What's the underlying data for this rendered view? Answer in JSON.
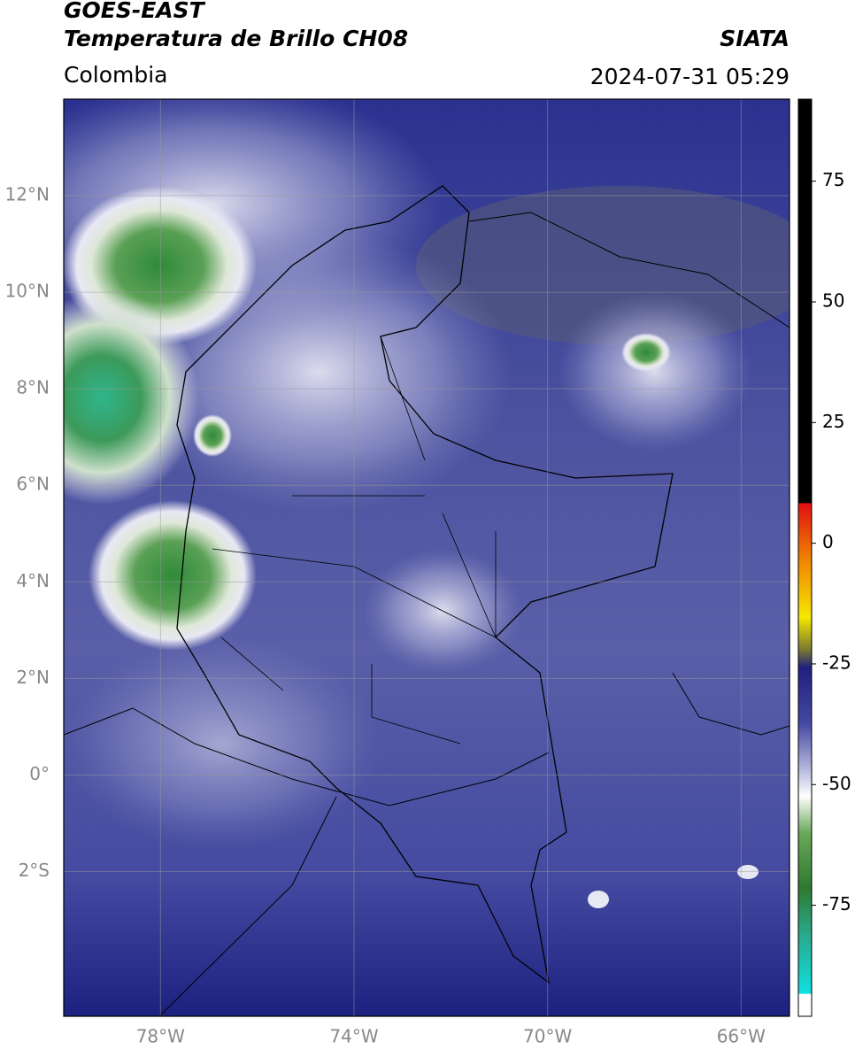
{
  "header": {
    "title": "GOES-EAST",
    "subtitle": "Temperatura de Brillo CH08",
    "source": "SIATA",
    "region": "Colombia",
    "timestamp": "2024-07-31 05:29"
  },
  "map": {
    "xlim": [
      -80,
      -65
    ],
    "ylim": [
      -5,
      14
    ],
    "xticks": [
      {
        "value": -78,
        "label": "78°W"
      },
      {
        "value": -74,
        "label": "74°W"
      },
      {
        "value": -70,
        "label": "70°W"
      },
      {
        "value": -66,
        "label": "66°W"
      }
    ],
    "yticks": [
      {
        "value": 12,
        "label": "12°N"
      },
      {
        "value": 10,
        "label": "10°N"
      },
      {
        "value": 8,
        "label": "8°N"
      },
      {
        "value": 6,
        "label": "6°N"
      },
      {
        "value": 4,
        "label": "4°N"
      },
      {
        "value": 2,
        "label": "2°N"
      },
      {
        "value": 0,
        "label": "0°"
      },
      {
        "value": -2,
        "label": "2°S"
      }
    ],
    "grid": true
  },
  "colorbar": {
    "lim": [
      -98,
      92
    ],
    "ticks": [
      75,
      50,
      25,
      0,
      -25,
      -50,
      -75
    ]
  }
}
